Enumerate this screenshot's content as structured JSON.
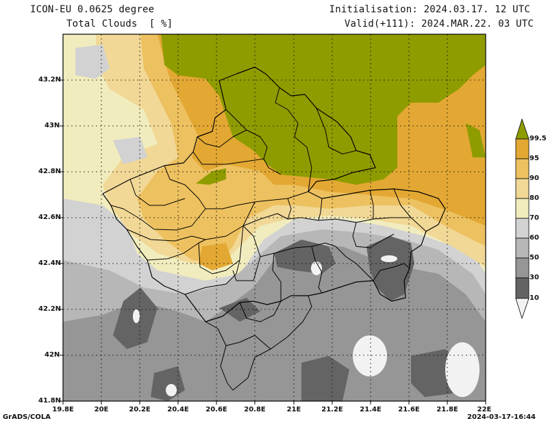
{
  "header": {
    "model": "ICON-EU 0.0625 degree",
    "variable": "Total Clouds  [ %]",
    "init": "Initialisation: 2024.03.17. 12 UTC",
    "valid": "Valid(+111): 2024.MAR.22. 03 UTC"
  },
  "axes": {
    "y_ticks": [
      "43.2N",
      "43N",
      "42.8N",
      "42.6N",
      "42.4N",
      "42.2N",
      "42N",
      "41.8N"
    ],
    "x_ticks": [
      "19.8E",
      "20E",
      "20.2E",
      "20.4E",
      "20.6E",
      "20.8E",
      "21E",
      "21.2E",
      "21.4E",
      "21.6E",
      "21.8E",
      "22E"
    ],
    "lon_range": [
      19.8,
      22.0
    ],
    "lat_range": [
      41.8,
      43.4
    ]
  },
  "colorbar": {
    "levels": [
      "99.5",
      "95",
      "90",
      "80",
      "70",
      "60",
      "50",
      "30",
      "10"
    ],
    "colors": {
      "c99": "#8f9c00",
      "c95": "#e3a833",
      "c90": "#edc15f",
      "c80": "#f1d896",
      "c70": "#f0ecbd",
      "c60": "#d2d2d2",
      "c50": "#b7b7b7",
      "c30": "#969696",
      "c10": "#646464",
      "c0": "#f2f2f2"
    }
  },
  "footer": {
    "left": "GrADS/COLA",
    "right": "2024-03-17-16:44"
  }
}
